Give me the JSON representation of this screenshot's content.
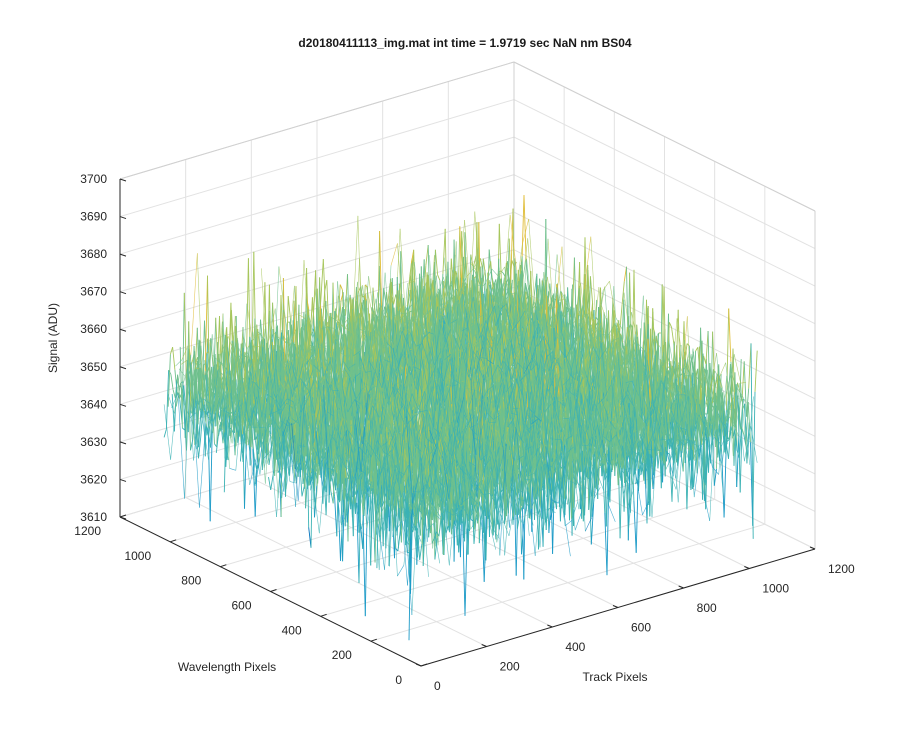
{
  "chart_data": {
    "type": "surface",
    "title": "d20180411113_img.mat int time = 1.9719 sec  NaN nm BS04",
    "xlabel": "Track Pixels",
    "ylabel": "Wavelength Pixels",
    "zlabel": "Signal (ADU)",
    "xlim": [
      0,
      1200
    ],
    "ylim": [
      0,
      1200
    ],
    "zlim": [
      3610,
      3700
    ],
    "x_ticks": [
      0,
      200,
      400,
      600,
      800,
      1000,
      1200
    ],
    "y_ticks": [
      0,
      200,
      400,
      600,
      800,
      1000,
      1200
    ],
    "z_ticks": [
      3610,
      3620,
      3630,
      3640,
      3650,
      3660,
      3670,
      3680,
      3690,
      3700
    ],
    "x_extent": [
      0,
      1024
    ],
    "y_extent": [
      0,
      1024
    ],
    "z_mean": 3650,
    "z_approx_range": [
      3615,
      3690
    ],
    "noise_description": "pixel noise surface, values approx. 3650 ± 20 ADU",
    "colormap": [
      "#0072BD",
      "#1B9AC7",
      "#3BB2B4",
      "#6FC08D",
      "#A7C65C",
      "#E0BD38",
      "#F4C430"
    ],
    "grid": true,
    "view": "3-D perspective, azimuth -37.5°, elevation 30°"
  }
}
